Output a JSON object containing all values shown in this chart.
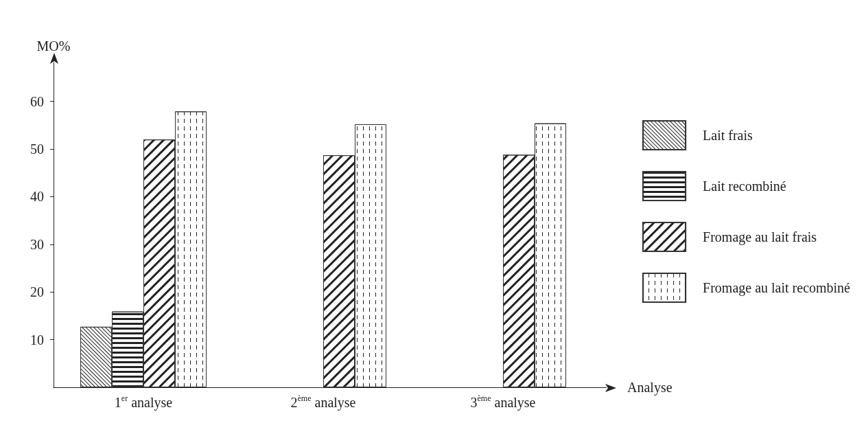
{
  "chart_data": {
    "type": "bar",
    "xlabel": "Analyse",
    "ylabel": "MO%",
    "categories": [
      "1$^{er}$ analyse",
      "2$^{ème}$ analyse",
      "3$^{ème}$ analyse"
    ],
    "series": [
      {
        "name": "Lait frais",
        "color": "#ffffff",
        "values": [
          12.7,
          null,
          null
        ]
      },
      {
        "name": "Lait recombiné",
        "color": "#ffffff",
        "values": [
          15.9,
          null,
          null
        ]
      },
      {
        "name": "Fromage au lait frais",
        "color": "#ffffff",
        "values": [
          52,
          48.7,
          48.8
        ]
      },
      {
        "name": "Fromage au lait recombiné",
        "color": "#ffffff",
        "values": [
          57.9,
          55.2,
          55.4
        ]
      }
    ],
    "ylim": [
      0,
      65
    ],
    "yticks": [
      10,
      20,
      30,
      40,
      50,
      60
    ],
    "grid": false,
    "legend": "right"
  }
}
